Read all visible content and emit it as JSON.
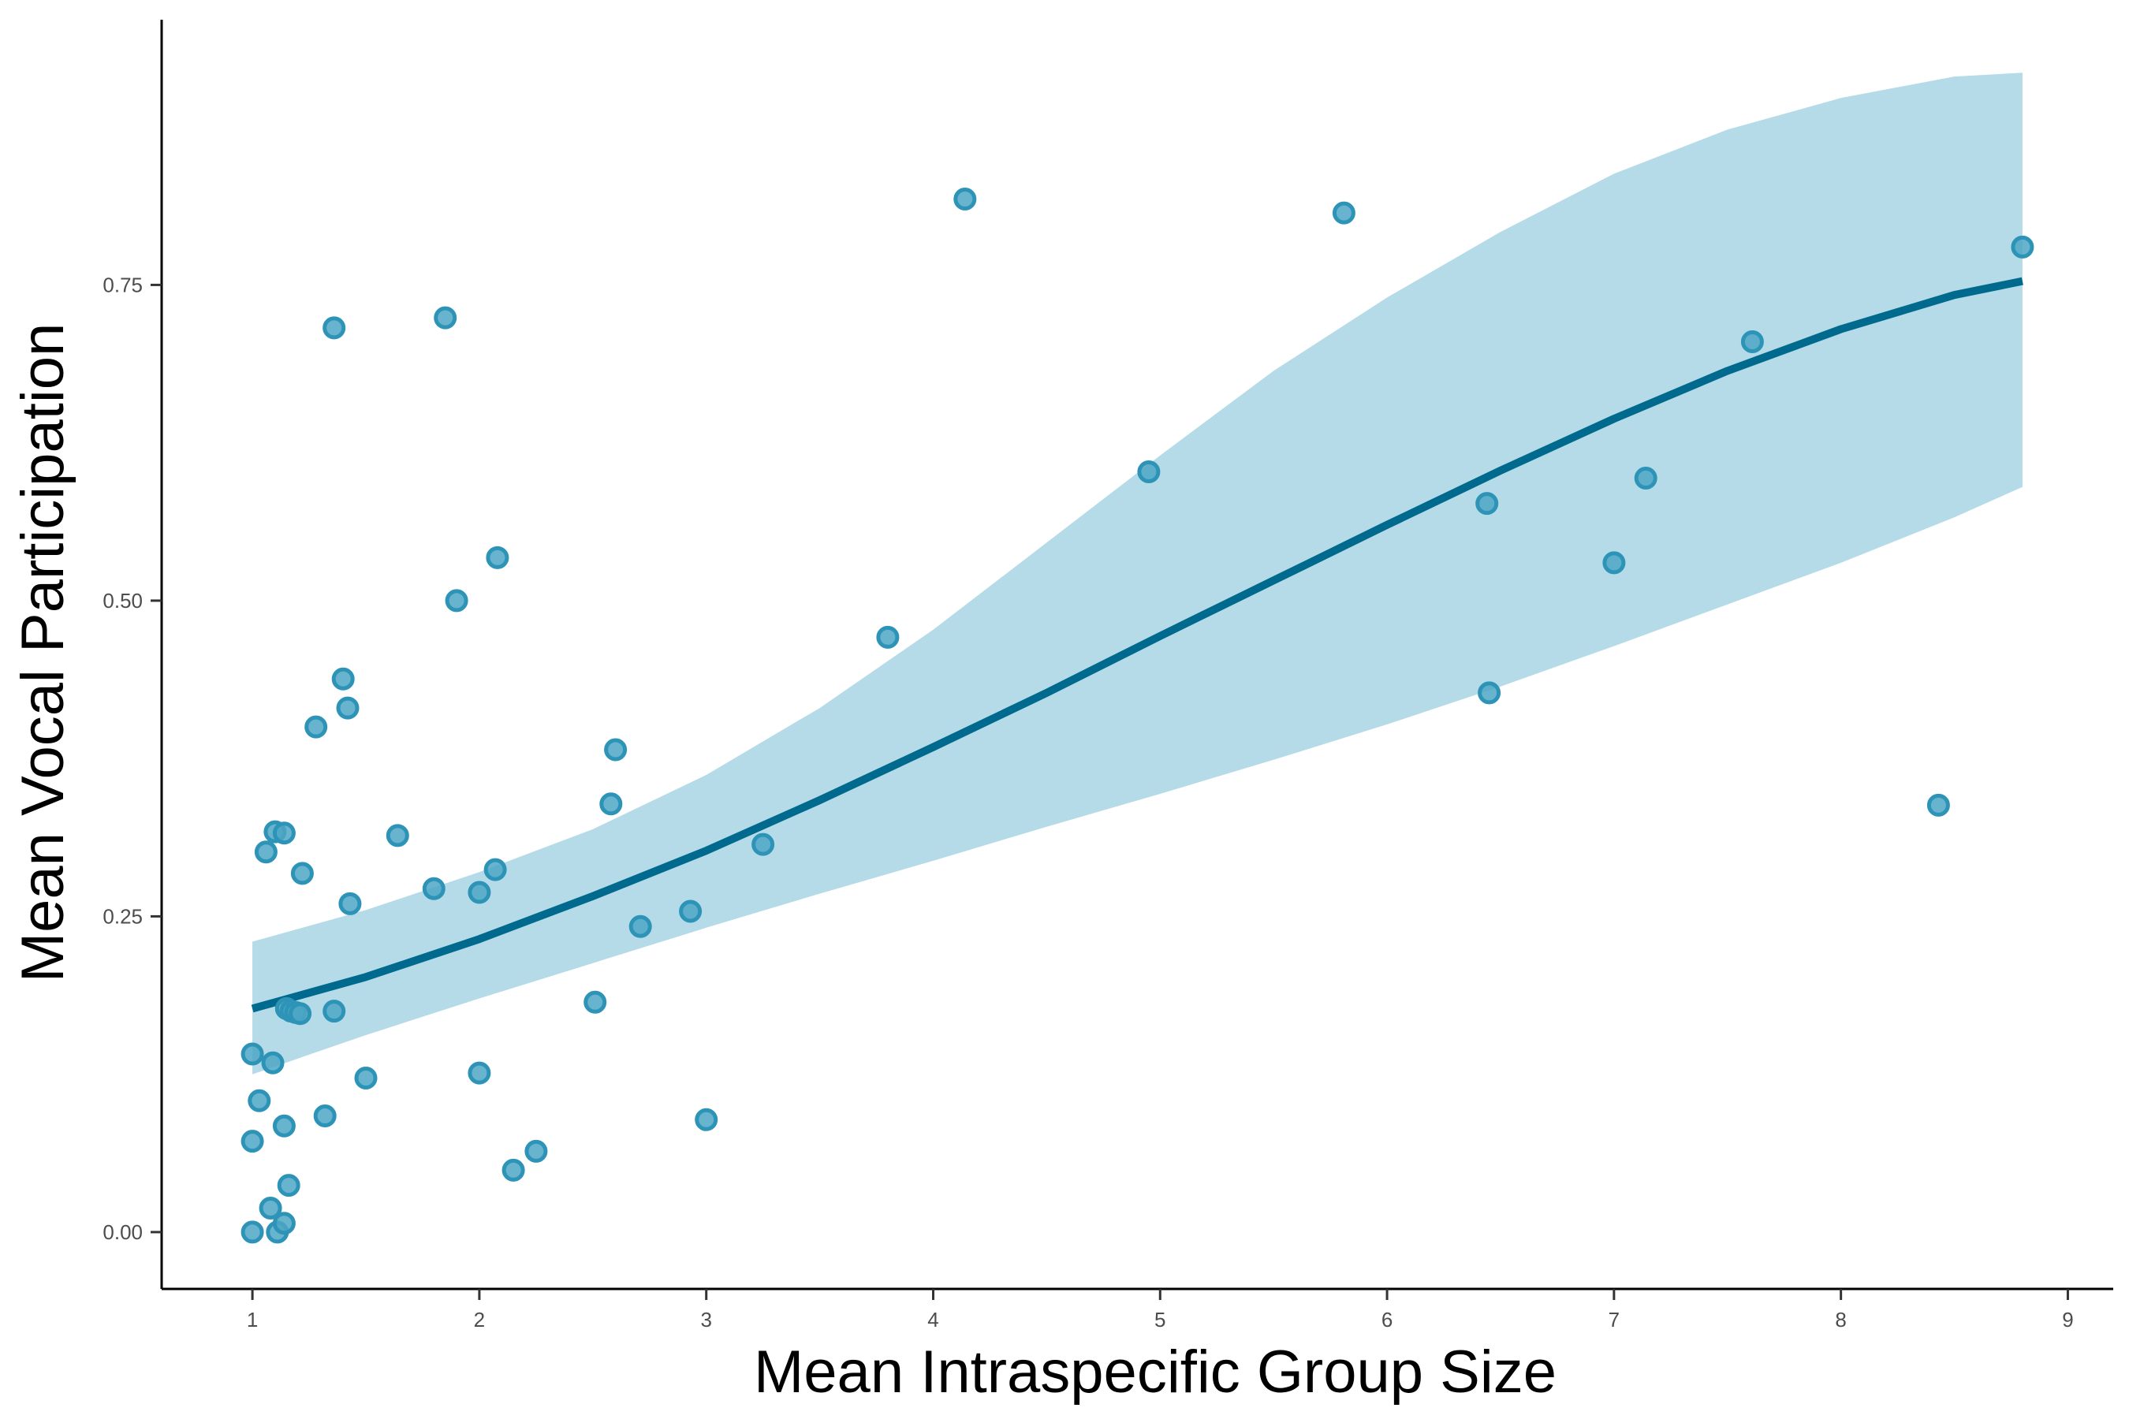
{
  "chart_data": {
    "type": "scatter",
    "title": "",
    "xlabel": "Mean Intraspecific Group Size",
    "ylabel": "Mean Vocal Participation",
    "xlim": [
      0.6,
      9.2
    ],
    "ylim": [
      -0.045,
      0.96
    ],
    "x_ticks": [
      1,
      2,
      3,
      4,
      5,
      6,
      7,
      8,
      9
    ],
    "y_ticks": [
      0,
      0.25,
      0.5,
      0.75
    ],
    "x_tick_labels": [
      "1",
      "2",
      "3",
      "4",
      "5",
      "6",
      "7",
      "8",
      "9"
    ],
    "y_tick_labels": [
      "0.00",
      "0.25",
      "0.50",
      "0.75"
    ],
    "grid": false,
    "legend": "none",
    "colors": {
      "point_fill": "#4da6c4",
      "point_stroke": "#2d94b8",
      "fit_line": "#006a8e",
      "ribbon": "#b4dbe7",
      "axis": "#000000"
    },
    "points": [
      {
        "x": 1.0,
        "y": 0.0
      },
      {
        "x": 1.0,
        "y": 0.072
      },
      {
        "x": 1.0,
        "y": 0.141
      },
      {
        "x": 1.03,
        "y": 0.104
      },
      {
        "x": 1.06,
        "y": 0.301
      },
      {
        "x": 1.08,
        "y": 0.019
      },
      {
        "x": 1.09,
        "y": 0.134
      },
      {
        "x": 1.1,
        "y": 0.317
      },
      {
        "x": 1.11,
        "y": 0.0
      },
      {
        "x": 1.14,
        "y": 0.316
      },
      {
        "x": 1.14,
        "y": 0.007
      },
      {
        "x": 1.14,
        "y": 0.084
      },
      {
        "x": 1.15,
        "y": 0.177
      },
      {
        "x": 1.16,
        "y": 0.037
      },
      {
        "x": 1.17,
        "y": 0.175
      },
      {
        "x": 1.19,
        "y": 0.174
      },
      {
        "x": 1.21,
        "y": 0.173
      },
      {
        "x": 1.22,
        "y": 0.284
      },
      {
        "x": 1.28,
        "y": 0.4
      },
      {
        "x": 1.32,
        "y": 0.092
      },
      {
        "x": 1.36,
        "y": 0.716
      },
      {
        "x": 1.36,
        "y": 0.175
      },
      {
        "x": 1.4,
        "y": 0.438
      },
      {
        "x": 1.42,
        "y": 0.415
      },
      {
        "x": 1.43,
        "y": 0.26
      },
      {
        "x": 1.5,
        "y": 0.122
      },
      {
        "x": 1.64,
        "y": 0.314
      },
      {
        "x": 1.8,
        "y": 0.272
      },
      {
        "x": 1.85,
        "y": 0.724
      },
      {
        "x": 1.9,
        "y": 0.5
      },
      {
        "x": 2.0,
        "y": 0.269
      },
      {
        "x": 2.0,
        "y": 0.126
      },
      {
        "x": 2.07,
        "y": 0.287
      },
      {
        "x": 2.08,
        "y": 0.534
      },
      {
        "x": 2.15,
        "y": 0.049
      },
      {
        "x": 2.25,
        "y": 0.064
      },
      {
        "x": 2.51,
        "y": 0.182
      },
      {
        "x": 2.58,
        "y": 0.339
      },
      {
        "x": 2.6,
        "y": 0.382
      },
      {
        "x": 2.71,
        "y": 0.242
      },
      {
        "x": 2.93,
        "y": 0.254
      },
      {
        "x": 3.0,
        "y": 0.089
      },
      {
        "x": 3.25,
        "y": 0.307
      },
      {
        "x": 3.8,
        "y": 0.471
      },
      {
        "x": 4.14,
        "y": 0.818
      },
      {
        "x": 4.95,
        "y": 0.602
      },
      {
        "x": 5.81,
        "y": 0.807
      },
      {
        "x": 6.44,
        "y": 0.577
      },
      {
        "x": 6.45,
        "y": 0.427
      },
      {
        "x": 7.0,
        "y": 0.53
      },
      {
        "x": 7.14,
        "y": 0.597
      },
      {
        "x": 7.61,
        "y": 0.705
      },
      {
        "x": 8.43,
        "y": 0.338
      },
      {
        "x": 8.8,
        "y": 0.78
      }
    ],
    "fit": {
      "x": [
        1.0,
        1.5,
        2.0,
        2.5,
        3.0,
        3.5,
        4.0,
        4.5,
        5.0,
        5.5,
        6.0,
        6.5,
        7.0,
        7.5,
        8.0,
        8.5,
        8.8
      ],
      "y": [
        0.177,
        0.202,
        0.232,
        0.266,
        0.302,
        0.342,
        0.384,
        0.427,
        0.472,
        0.516,
        0.56,
        0.603,
        0.644,
        0.682,
        0.715,
        0.742,
        0.753
      ],
      "lower": [
        0.125,
        0.156,
        0.185,
        0.213,
        0.241,
        0.268,
        0.294,
        0.321,
        0.347,
        0.374,
        0.402,
        0.432,
        0.464,
        0.497,
        0.53,
        0.566,
        0.59
      ],
      "upper": [
        0.23,
        0.255,
        0.285,
        0.319,
        0.362,
        0.415,
        0.477,
        0.546,
        0.615,
        0.682,
        0.74,
        0.792,
        0.838,
        0.873,
        0.898,
        0.915,
        0.918
      ]
    }
  }
}
